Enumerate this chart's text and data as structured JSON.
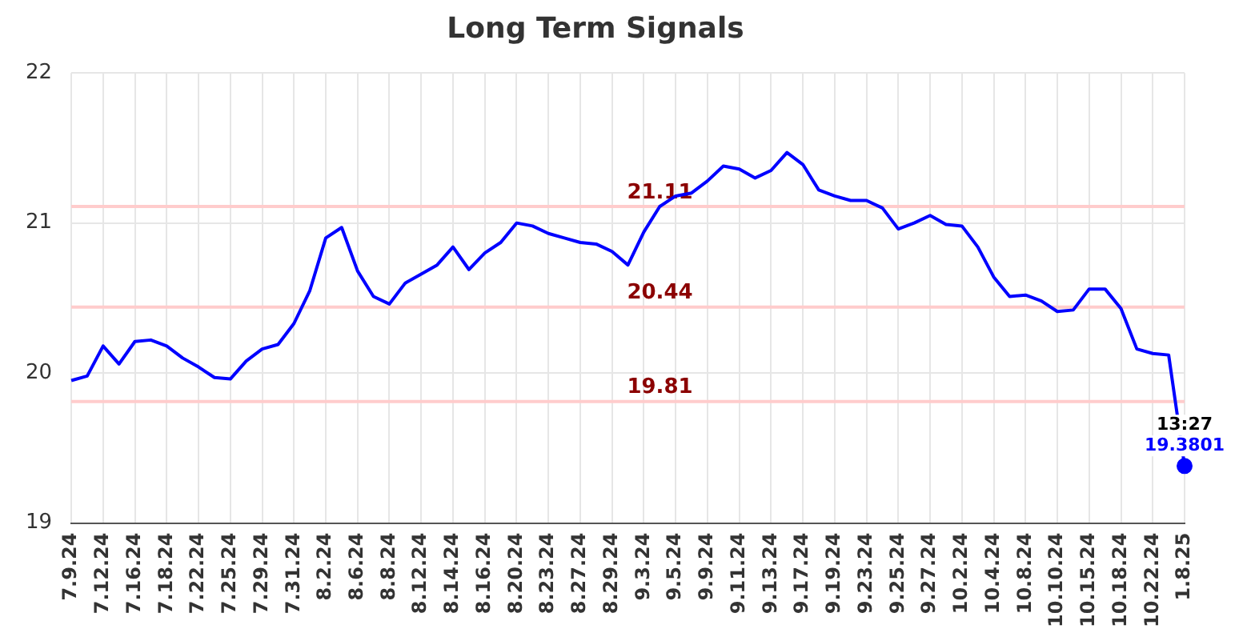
{
  "chart_data": {
    "type": "line",
    "title": "Long Term Signals",
    "categories": [
      "7.9.24",
      null,
      "7.12.24",
      null,
      "7.16.24",
      null,
      "7.18.24",
      null,
      "7.22.24",
      null,
      "7.25.24",
      null,
      "7.29.24",
      null,
      "7.31.24",
      null,
      "8.2.24",
      null,
      "8.6.24",
      null,
      "8.8.24",
      null,
      "8.12.24",
      null,
      "8.14.24",
      null,
      "8.16.24",
      null,
      "8.20.24",
      null,
      "8.23.24",
      null,
      "8.27.24",
      null,
      "8.29.24",
      null,
      "9.3.24",
      null,
      "9.5.24",
      null,
      "9.9.24",
      null,
      "9.11.24",
      null,
      "9.13.24",
      null,
      "9.17.24",
      null,
      "9.19.24",
      null,
      "9.23.24",
      null,
      "9.25.24",
      null,
      "9.27.24",
      null,
      "10.2.24",
      null,
      "10.4.24",
      null,
      "10.8.24",
      null,
      "10.10.24",
      null,
      "10.15.24",
      null,
      "10.18.24",
      null,
      "10.22.24",
      null,
      "1.8.25"
    ],
    "series": [
      {
        "color": "#0000ff",
        "values": [
          19.95,
          19.98,
          20.18,
          20.06,
          20.21,
          20.22,
          20.18,
          20.1,
          20.04,
          19.97,
          19.96,
          20.08,
          20.16,
          20.19,
          20.33,
          20.55,
          20.9,
          20.97,
          20.68,
          20.51,
          20.46,
          20.6,
          20.66,
          20.72,
          20.84,
          20.69,
          20.8,
          20.87,
          21.0,
          20.98,
          20.93,
          20.9,
          20.87,
          20.86,
          20.81,
          20.72,
          20.94,
          21.11,
          21.18,
          21.2,
          21.28,
          21.38,
          21.36,
          21.3,
          21.35,
          21.47,
          21.39,
          21.22,
          21.18,
          21.15,
          21.15,
          21.1,
          20.96,
          21.0,
          21.05,
          20.99,
          20.98,
          20.84,
          20.64,
          20.51,
          20.52,
          20.48,
          20.41,
          20.42,
          20.56,
          20.56,
          20.43,
          20.16,
          20.13,
          20.12,
          19.38
        ]
      }
    ],
    "ylim": [
      19,
      22
    ],
    "yticks": [
      19,
      20,
      21,
      22
    ],
    "grid": true,
    "legend": false,
    "line_style": "solid",
    "ref_lines": [
      {
        "axis": "y",
        "value": 21.11,
        "label": "21.11",
        "color": "#ffcccc"
      },
      {
        "axis": "y",
        "value": 20.44,
        "label": "20.44",
        "color": "#ffcccc"
      },
      {
        "axis": "y",
        "value": 19.81,
        "label": "19.81",
        "color": "#ffcccc"
      }
    ],
    "annotations": [
      {
        "text": "13:27",
        "x": "1.8.25",
        "y": 19.3801
      },
      {
        "text": "19.3801",
        "x": "1.8.25",
        "y": 19.3801
      }
    ]
  }
}
